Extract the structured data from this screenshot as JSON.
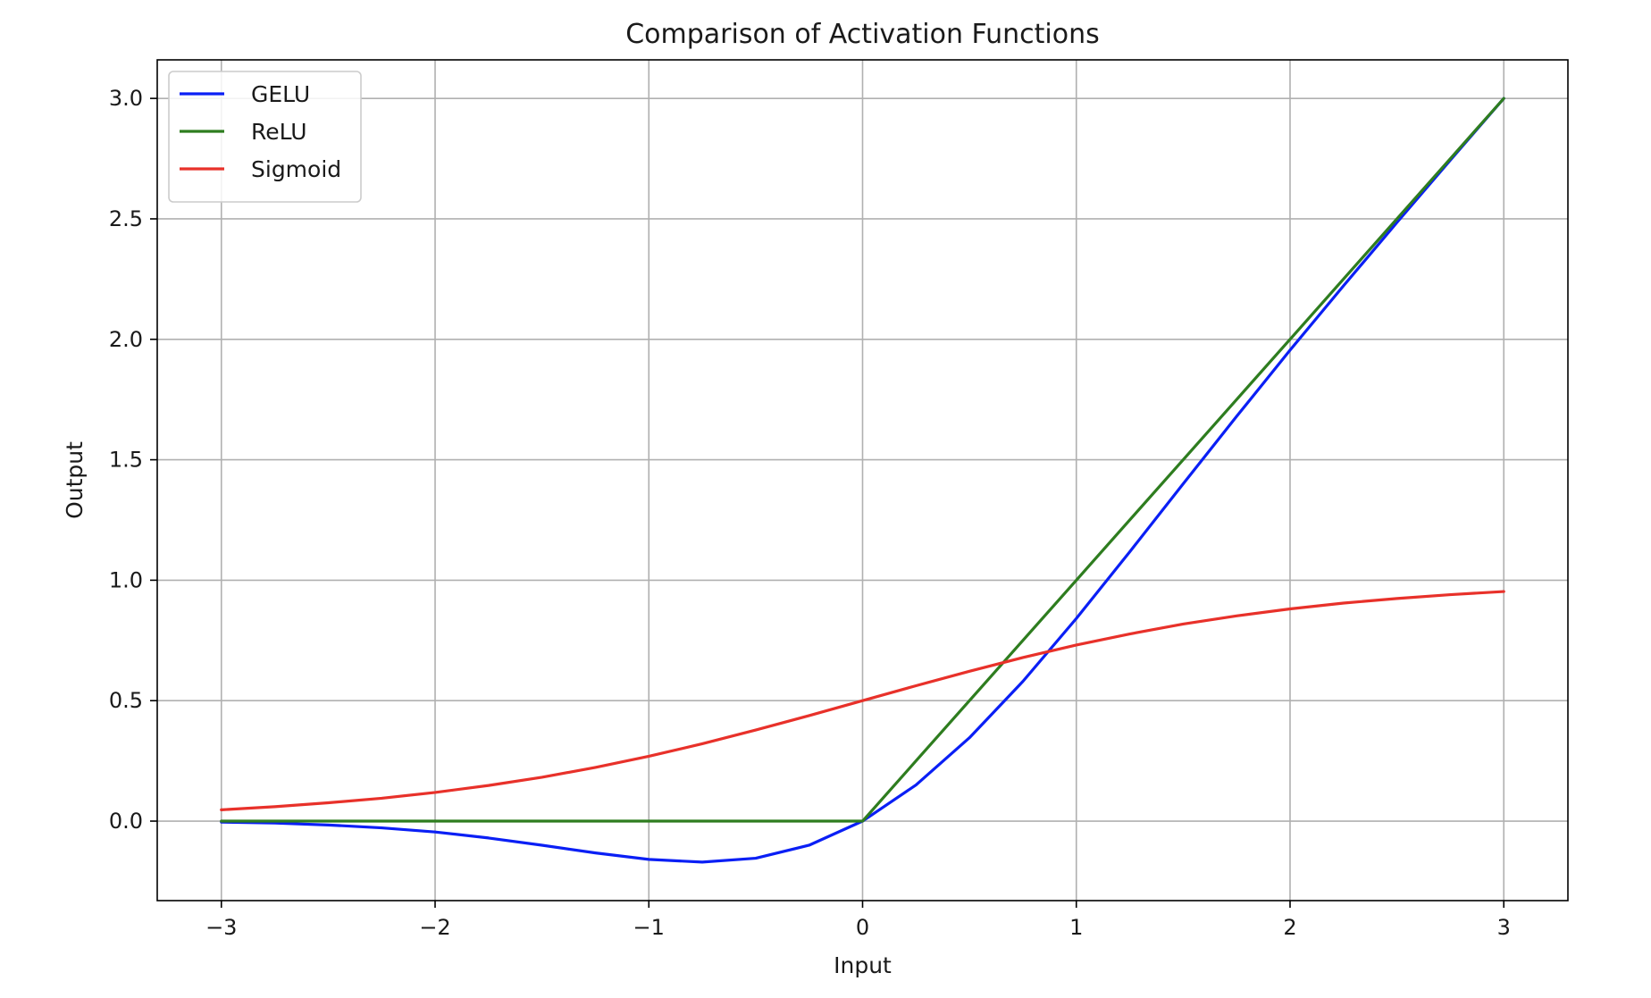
{
  "chart_data": {
    "type": "line",
    "title": "Comparison of Activation Functions",
    "xlabel": "Input",
    "ylabel": "Output",
    "xlim": [
      -3.3,
      3.3
    ],
    "ylim": [
      -0.33,
      3.16
    ],
    "xticks": [
      -3,
      -2,
      -1,
      0,
      1,
      2,
      3
    ],
    "xtick_labels": [
      "−3",
      "−2",
      "−1",
      "0",
      "1",
      "2",
      "3"
    ],
    "yticks": [
      0.0,
      0.5,
      1.0,
      1.5,
      2.0,
      2.5,
      3.0
    ],
    "ytick_labels": [
      "0.0",
      "0.5",
      "1.0",
      "1.5",
      "2.0",
      "2.5",
      "3.0"
    ],
    "grid": true,
    "legend_position": "top-left",
    "x": [
      -3.0,
      -2.75,
      -2.5,
      -2.25,
      -2.0,
      -1.75,
      -1.5,
      -1.25,
      -1.0,
      -0.75,
      -0.5,
      -0.25,
      0.0,
      0.25,
      0.5,
      0.75,
      1.0,
      1.25,
      1.5,
      1.75,
      2.0,
      2.25,
      2.5,
      2.75,
      3.0
    ],
    "series": [
      {
        "name": "GELU",
        "color": "#0a1ff5",
        "values": [
          -0.004,
          -0.008,
          -0.016,
          -0.028,
          -0.045,
          -0.07,
          -0.1,
          -0.132,
          -0.159,
          -0.17,
          -0.154,
          -0.1,
          0.0,
          0.15,
          0.346,
          0.58,
          0.841,
          1.118,
          1.4,
          1.68,
          1.955,
          2.222,
          2.485,
          2.744,
          3.0
        ]
      },
      {
        "name": "ReLU",
        "color": "#2e7d1f",
        "values": [
          0.0,
          0.0,
          0.0,
          0.0,
          0.0,
          0.0,
          0.0,
          0.0,
          0.0,
          0.0,
          0.0,
          0.0,
          0.0,
          0.25,
          0.5,
          0.75,
          1.0,
          1.25,
          1.5,
          1.75,
          2.0,
          2.25,
          2.5,
          2.75,
          3.0
        ]
      },
      {
        "name": "Sigmoid",
        "color": "#e8312a",
        "values": [
          0.047,
          0.06,
          0.076,
          0.095,
          0.119,
          0.148,
          0.182,
          0.223,
          0.269,
          0.321,
          0.378,
          0.438,
          0.5,
          0.562,
          0.622,
          0.679,
          0.731,
          0.777,
          0.818,
          0.852,
          0.881,
          0.905,
          0.924,
          0.94,
          0.953
        ]
      }
    ]
  }
}
